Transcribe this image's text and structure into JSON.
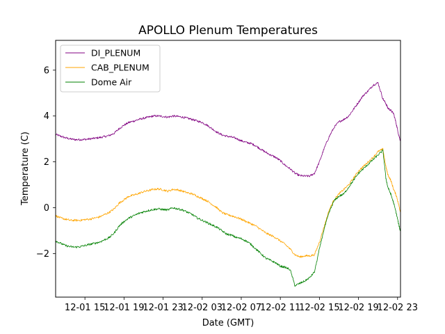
{
  "chart_data": {
    "type": "line",
    "title": "APOLLO Plenum Temperatures",
    "xlabel": "Date (GMT)",
    "ylabel": "Temperature (C)",
    "x_unit": "hours since 12-01 12:00 GMT",
    "xlim": [
      0,
      35.3
    ],
    "ylim": [
      -3.9,
      7.3
    ],
    "x_ticks": [
      {
        "value": 3,
        "label": "12-01 15"
      },
      {
        "value": 7,
        "label": "12-01 19"
      },
      {
        "value": 11,
        "label": "12-01 23"
      },
      {
        "value": 15,
        "label": "12-02 03"
      },
      {
        "value": 19,
        "label": "12-02 07"
      },
      {
        "value": 23,
        "label": "12-02 11"
      },
      {
        "value": 27,
        "label": "12-02 15"
      },
      {
        "value": 31,
        "label": "12-02 19"
      },
      {
        "value": 35,
        "label": "12-02 23"
      }
    ],
    "y_ticks": [
      {
        "value": -2,
        "label": "−2"
      },
      {
        "value": 0,
        "label": "0"
      },
      {
        "value": 2,
        "label": "2"
      },
      {
        "value": 4,
        "label": "4"
      },
      {
        "value": 6,
        "label": "6"
      }
    ],
    "legend_position": "top-left",
    "grid": false,
    "series": [
      {
        "name": "DI_PLENUM",
        "color": "#800080",
        "x": [
          0,
          0.5,
          1,
          1.5,
          2,
          2.5,
          3,
          3.5,
          4,
          4.5,
          5,
          5.5,
          6,
          6.5,
          7,
          7.5,
          8,
          8.5,
          9,
          9.5,
          10,
          10.5,
          11,
          11.5,
          12,
          12.5,
          13,
          13.5,
          14,
          14.5,
          15,
          15.5,
          16,
          16.5,
          17,
          17.5,
          18,
          18.5,
          19,
          19.5,
          20,
          20.5,
          21,
          21.5,
          22,
          22.5,
          23,
          23.5,
          24,
          24.5,
          25,
          25.5,
          26,
          26.5,
          27,
          27.5,
          28,
          28.5,
          29,
          29.5,
          30,
          30.5,
          31,
          31.5,
          32,
          32.5,
          33,
          33.5,
          33.8,
          34,
          34.3,
          34.6,
          34.9,
          35.1,
          35.3
        ],
        "values": [
          3.2,
          3.12,
          3.05,
          3.0,
          2.97,
          2.97,
          2.98,
          3.0,
          3.03,
          3.06,
          3.1,
          3.15,
          3.25,
          3.45,
          3.6,
          3.72,
          3.78,
          3.85,
          3.9,
          3.95,
          4.0,
          4.0,
          3.98,
          3.95,
          4.0,
          3.98,
          3.95,
          3.9,
          3.85,
          3.78,
          3.72,
          3.6,
          3.45,
          3.3,
          3.18,
          3.12,
          3.08,
          3.02,
          2.92,
          2.85,
          2.8,
          2.7,
          2.55,
          2.42,
          2.3,
          2.2,
          2.05,
          1.85,
          1.7,
          1.5,
          1.4,
          1.38,
          1.38,
          1.5,
          2.0,
          2.6,
          3.1,
          3.5,
          3.75,
          3.85,
          4.0,
          4.3,
          4.6,
          4.9,
          5.1,
          5.35,
          5.45,
          4.75,
          4.55,
          4.35,
          4.25,
          4.1,
          3.6,
          3.2,
          2.9
        ]
      },
      {
        "name": "CAB_PLENUM",
        "color": "#ffa500",
        "x": [
          0,
          0.5,
          1,
          1.5,
          2,
          2.5,
          3,
          3.5,
          4,
          4.5,
          5,
          5.5,
          6,
          6.5,
          7,
          7.5,
          8,
          8.5,
          9,
          9.5,
          10,
          10.5,
          11,
          11.5,
          12,
          12.5,
          13,
          13.5,
          14,
          14.5,
          15,
          15.5,
          16,
          16.5,
          17,
          17.5,
          18,
          18.5,
          19,
          19.5,
          20,
          20.5,
          21,
          21.5,
          22,
          22.5,
          23,
          23.5,
          24,
          24.5,
          25,
          25.5,
          26,
          26.5,
          27,
          27.5,
          28,
          28.5,
          29,
          29.5,
          30,
          30.5,
          31,
          31.5,
          32,
          32.5,
          33,
          33.5,
          33.8,
          34,
          34.3,
          34.6,
          34.9,
          35.1,
          35.3
        ],
        "values": [
          -0.35,
          -0.45,
          -0.5,
          -0.55,
          -0.55,
          -0.55,
          -0.52,
          -0.5,
          -0.45,
          -0.4,
          -0.3,
          -0.2,
          -0.05,
          0.2,
          0.35,
          0.5,
          0.55,
          0.62,
          0.7,
          0.75,
          0.8,
          0.82,
          0.78,
          0.72,
          0.8,
          0.78,
          0.72,
          0.65,
          0.6,
          0.5,
          0.4,
          0.3,
          0.15,
          0.0,
          -0.2,
          -0.3,
          -0.35,
          -0.42,
          -0.5,
          -0.6,
          -0.7,
          -0.8,
          -0.95,
          -1.1,
          -1.2,
          -1.3,
          -1.45,
          -1.6,
          -1.8,
          -2.05,
          -2.15,
          -2.1,
          -2.1,
          -2.05,
          -1.5,
          -0.8,
          -0.1,
          0.35,
          0.6,
          0.8,
          1.0,
          1.3,
          1.6,
          1.8,
          2.0,
          2.2,
          2.45,
          2.55,
          1.8,
          1.45,
          1.2,
          0.8,
          0.5,
          0.15,
          -0.2
        ]
      },
      {
        "name": "Dome Air",
        "color": "#008000",
        "x": [
          0,
          0.5,
          1,
          1.5,
          2,
          2.5,
          3,
          3.5,
          4,
          4.5,
          5,
          5.5,
          6,
          6.5,
          7,
          7.5,
          8,
          8.5,
          9,
          9.5,
          10,
          10.5,
          11,
          11.5,
          12,
          12.5,
          13,
          13.5,
          14,
          14.5,
          15,
          15.5,
          16,
          16.5,
          17,
          17.5,
          18,
          18.5,
          19,
          19.5,
          20,
          20.5,
          21,
          21.5,
          22,
          22.5,
          23,
          23.5,
          24,
          24.5,
          25,
          25.5,
          26,
          26.5,
          27,
          27.5,
          28,
          28.5,
          29,
          29.5,
          30,
          30.5,
          31,
          31.5,
          32,
          32.5,
          33,
          33.5,
          33.8,
          34,
          34.3,
          34.6,
          34.9,
          35.1,
          35.3
        ],
        "values": [
          -1.45,
          -1.55,
          -1.65,
          -1.7,
          -1.72,
          -1.7,
          -1.65,
          -1.6,
          -1.55,
          -1.5,
          -1.4,
          -1.3,
          -1.1,
          -0.8,
          -0.6,
          -0.45,
          -0.35,
          -0.25,
          -0.18,
          -0.12,
          -0.08,
          -0.05,
          -0.08,
          -0.1,
          0.0,
          -0.05,
          -0.1,
          -0.2,
          -0.3,
          -0.45,
          -0.55,
          -0.65,
          -0.75,
          -0.85,
          -1.0,
          -1.15,
          -1.2,
          -1.3,
          -1.35,
          -1.45,
          -1.6,
          -1.8,
          -2.0,
          -2.2,
          -2.3,
          -2.4,
          -2.55,
          -2.6,
          -2.7,
          -3.4,
          -3.3,
          -3.2,
          -3.05,
          -2.8,
          -1.8,
          -0.9,
          -0.2,
          0.3,
          0.5,
          0.6,
          0.9,
          1.2,
          1.5,
          1.7,
          1.9,
          2.1,
          2.3,
          2.5,
          1.3,
          0.9,
          0.6,
          0.2,
          -0.3,
          -0.7,
          -1.05
        ]
      }
    ]
  }
}
